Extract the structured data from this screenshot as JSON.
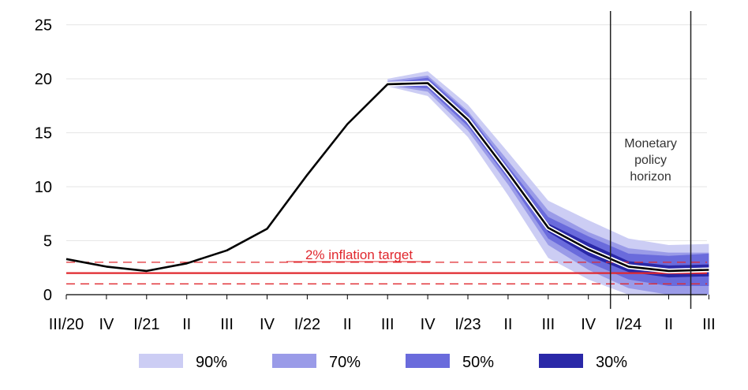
{
  "chart_data": {
    "type": "line",
    "title": "",
    "xlabel": "",
    "ylabel": "",
    "ylim": [
      0,
      25
    ],
    "yticks": [
      0,
      5,
      10,
      15,
      20,
      25
    ],
    "grid": true,
    "categories": [
      "III/20",
      "IV",
      "I/21",
      "II",
      "III",
      "IV",
      "I/22",
      "II",
      "III",
      "IV",
      "I/23",
      "II",
      "III",
      "IV",
      "I/24",
      "II",
      "III"
    ],
    "series": [
      {
        "values": [
          3.3,
          2.6,
          2.2,
          2.9,
          4.1,
          6.1,
          11.1,
          15.8,
          19.5,
          19.6,
          16.2,
          11.3,
          6.2,
          4.2,
          2.6,
          2.2,
          2.3
        ]
      }
    ],
    "fan_start_index": 8,
    "fan_bands": [
      {
        "label": "90%",
        "color": "#cccdf4",
        "lower": [
          19.3,
          18.4,
          14.6,
          9.2,
          3.4,
          1.4,
          0.0,
          0.0,
          0.0
        ],
        "upper": [
          20.0,
          20.7,
          17.6,
          13.2,
          8.7,
          6.9,
          5.2,
          4.6,
          4.7
        ]
      },
      {
        "label": "70%",
        "color": "#9a9be8",
        "lower": [
          19.4,
          18.8,
          15.2,
          10.2,
          4.6,
          2.3,
          0.6,
          0.0,
          0.0
        ],
        "upper": [
          19.8,
          20.3,
          17.0,
          12.4,
          7.8,
          5.8,
          4.3,
          3.9,
          3.9
        ]
      },
      {
        "label": "50%",
        "color": "#6a6bdc",
        "lower": [
          19.4,
          19.1,
          15.6,
          10.7,
          5.2,
          3.0,
          1.4,
          0.8,
          0.8
        ]
      },
      {
        "label": "30%",
        "color": "#2a28a8",
        "lower": [
          19.5,
          19.4,
          15.9,
          11.0,
          5.8,
          3.6,
          2.1,
          1.6,
          1.7
        ],
        "upper": [
          19.6,
          19.8,
          16.5,
          11.6,
          6.6,
          4.8,
          3.1,
          2.7,
          2.8
        ]
      }
    ],
    "target": {
      "label": "2% inflation target",
      "value": 2,
      "lower": 1,
      "upper": 3,
      "color": "#e0282e"
    },
    "policy_horizon": {
      "label_lines": [
        "Monetary",
        "policy",
        "horizon"
      ],
      "start_index": 13.55,
      "end_index": 15.55
    }
  },
  "legend": {
    "items": [
      {
        "label": "90%",
        "color": "#cccdf4"
      },
      {
        "label": "70%",
        "color": "#9a9be8"
      },
      {
        "label": "50%",
        "color": "#6a6bdc"
      },
      {
        "label": "30%",
        "color": "#2a28a8"
      }
    ]
  }
}
